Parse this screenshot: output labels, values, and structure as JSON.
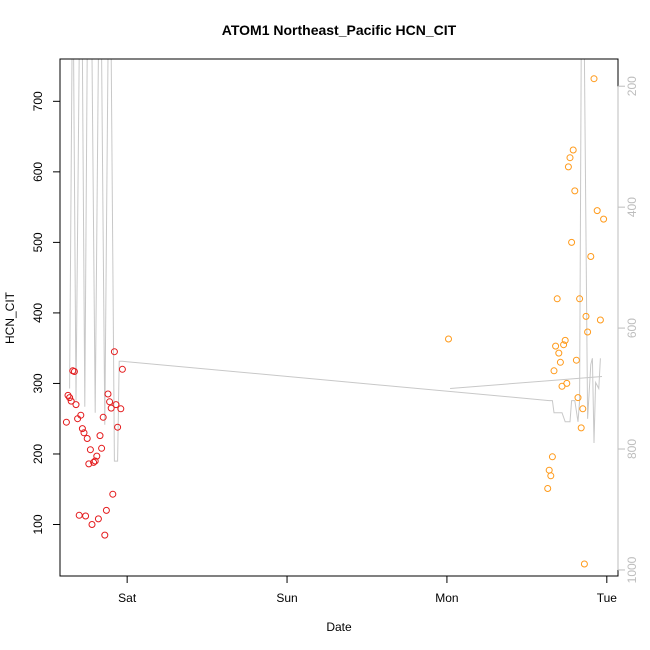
{
  "chart_data": {
    "type": "scatter",
    "title": "ATOM1 Northeast_Pacific HCN_CIT",
    "xlabel": "Date",
    "ylabel": "HCN_CIT",
    "x_ticks": [
      {
        "label": "Sat",
        "t": 1.0
      },
      {
        "label": "Sun",
        "t": 2.0
      },
      {
        "label": "Mon",
        "t": 3.0
      },
      {
        "label": "Tue",
        "t": 4.0
      }
    ],
    "xlim": [
      0.58,
      4.07
    ],
    "y_ticks": [
      100,
      200,
      300,
      400,
      500,
      600,
      700
    ],
    "ylim": [
      27,
      760
    ],
    "y2_ticks": [
      200,
      400,
      600,
      800,
      1000
    ],
    "y2lim": [
      1010,
      155
    ],
    "series": [
      {
        "color": "#e41a1c",
        "points": [
          [
            0.62,
            245
          ],
          [
            0.63,
            283
          ],
          [
            0.64,
            280
          ],
          [
            0.65,
            275
          ],
          [
            0.66,
            318
          ],
          [
            0.67,
            317
          ],
          [
            0.68,
            270
          ],
          [
            0.69,
            250
          ],
          [
            0.7,
            113
          ],
          [
            0.71,
            255
          ],
          [
            0.72,
            236
          ],
          [
            0.73,
            230
          ],
          [
            0.74,
            112
          ],
          [
            0.75,
            222
          ],
          [
            0.76,
            186
          ],
          [
            0.77,
            206
          ],
          [
            0.78,
            100
          ],
          [
            0.79,
            188
          ],
          [
            0.8,
            190
          ],
          [
            0.81,
            197
          ],
          [
            0.82,
            108
          ],
          [
            0.83,
            226
          ],
          [
            0.84,
            208
          ],
          [
            0.85,
            252
          ],
          [
            0.86,
            85
          ],
          [
            0.87,
            120
          ],
          [
            0.88,
            285
          ],
          [
            0.89,
            274
          ],
          [
            0.9,
            265
          ],
          [
            0.91,
            143
          ],
          [
            0.92,
            345
          ],
          [
            0.93,
            270
          ],
          [
            0.94,
            238
          ],
          [
            0.96,
            264
          ],
          [
            0.97,
            320
          ]
        ]
      },
      {
        "color": "#ff9a1a",
        "points": [
          [
            3.01,
            363
          ],
          [
            3.63,
            151
          ],
          [
            3.64,
            177
          ],
          [
            3.65,
            169
          ],
          [
            3.66,
            196
          ],
          [
            3.67,
            318
          ],
          [
            3.68,
            353
          ],
          [
            3.69,
            420
          ],
          [
            3.7,
            343
          ],
          [
            3.71,
            330
          ],
          [
            3.72,
            296
          ],
          [
            3.73,
            355
          ],
          [
            3.74,
            361
          ],
          [
            3.75,
            300
          ],
          [
            3.76,
            607
          ],
          [
            3.77,
            620
          ],
          [
            3.78,
            500
          ],
          [
            3.79,
            631
          ],
          [
            3.8,
            573
          ],
          [
            3.81,
            333
          ],
          [
            3.82,
            280
          ],
          [
            3.83,
            420
          ],
          [
            3.84,
            237
          ],
          [
            3.85,
            264
          ],
          [
            3.86,
            44
          ],
          [
            3.87,
            395
          ],
          [
            3.88,
            373
          ],
          [
            3.9,
            480
          ],
          [
            3.92,
            732
          ],
          [
            3.94,
            545
          ],
          [
            3.96,
            390
          ],
          [
            3.98,
            533
          ]
        ]
      }
    ],
    "pressure_trace": {
      "color": "#c8c8c8",
      "segments": [
        [
          [
            0.64,
            700
          ],
          [
            0.655,
            150
          ],
          [
            0.665,
            150
          ],
          [
            0.68,
            720
          ],
          [
            0.7,
            150
          ],
          [
            0.72,
            150
          ],
          [
            0.735,
            730
          ],
          [
            0.75,
            150
          ],
          [
            0.78,
            150
          ],
          [
            0.8,
            740
          ],
          [
            0.82,
            150
          ],
          [
            0.84,
            150
          ],
          [
            0.86,
            760
          ],
          [
            0.88,
            150
          ],
          [
            0.9,
            150
          ],
          [
            0.92,
            820
          ],
          [
            0.94,
            820
          ],
          [
            0.95,
            655
          ],
          [
            0.97,
            655
          ],
          [
            3.64,
            720
          ],
          [
            3.66,
            720
          ],
          [
            3.67,
            740
          ],
          [
            3.72,
            740
          ],
          [
            3.74,
            755
          ],
          [
            3.77,
            755
          ],
          [
            3.78,
            720
          ],
          [
            3.8,
            720
          ],
          [
            3.82,
            755
          ],
          [
            3.83,
            720
          ],
          [
            3.84,
            150
          ],
          [
            3.86,
            150
          ],
          [
            3.88,
            750
          ],
          [
            3.9,
            660
          ],
          [
            3.91,
            650
          ],
          [
            3.92,
            790
          ],
          [
            3.93,
            690
          ],
          [
            3.95,
            700
          ],
          [
            3.96,
            650
          ]
        ],
        [
          [
            3.02,
            700
          ],
          [
            3.97,
            680
          ]
        ]
      ]
    }
  }
}
